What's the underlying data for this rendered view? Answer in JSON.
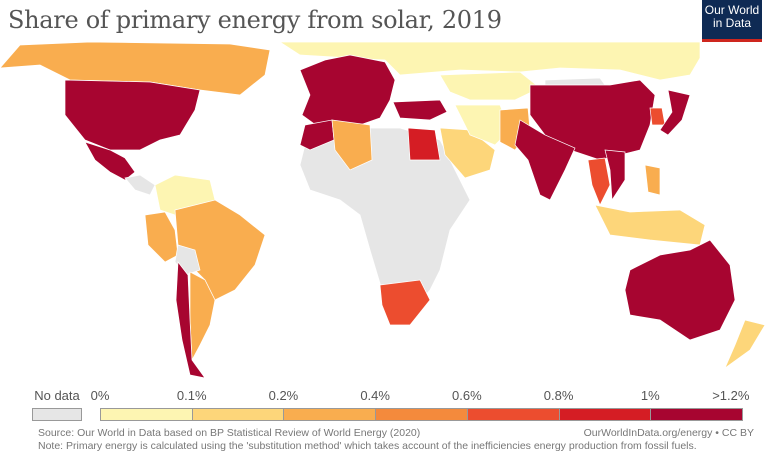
{
  "title": "Share of primary energy from solar, 2019",
  "logo": {
    "line1": "Our World",
    "line2": "in Data"
  },
  "chart_data": {
    "type": "choropleth",
    "title": "Share of primary energy from solar, 2019",
    "legend": {
      "no_data_label": "No data",
      "no_data_color": "#e6e6e6",
      "ticks": [
        "0%",
        "0.1%",
        "0.2%",
        "0.4%",
        "0.6%",
        "0.8%",
        "1%",
        ">1.2%"
      ],
      "bins": [
        {
          "range": "0-0.1%",
          "color": "#fdf5b2"
        },
        {
          "range": "0.1-0.2%",
          "color": "#fdd67a"
        },
        {
          "range": "0.2-0.4%",
          "color": "#f9ad4f"
        },
        {
          "range": "0.4-0.6%",
          "color": "#f48a3c"
        },
        {
          "range": "0.6-0.8%",
          "color": "#ec4d2f"
        },
        {
          "range": "0.8-1%",
          "color": "#d51d24"
        },
        {
          "range": ">1.2%",
          "color": "#a70530"
        }
      ]
    },
    "regions": {
      "canada": 2,
      "usa": 6,
      "mexico": 6,
      "central_america": -1,
      "colombia_venezuela": 0,
      "brazil": 2,
      "peru": 2,
      "bolivia": -1,
      "chile": 6,
      "argentina": 2,
      "europe": 6,
      "turkey": 6,
      "russia": 0,
      "kazakhstan": 0,
      "africa": -1,
      "morocco": 6,
      "algeria": 2,
      "egypt": 5,
      "south_africa": 4,
      "saudi_arabia": 1,
      "iran": 0,
      "pakistan": 2,
      "india": 6,
      "china": 6,
      "korea": 4,
      "japan": 6,
      "thailand": 4,
      "vietnam": 6,
      "philippines": 2,
      "indonesia": 1,
      "australia": 6,
      "new_zealand": 1,
      "mongolia": -1
    }
  },
  "footer": {
    "source": "Source: Our World in Data based on BP Statistical Review of World Energy (2020)",
    "link": "OurWorldInData.org/energy • CC BY",
    "note": "Note: Primary energy is calculated using the 'substitution method' which takes account of the inefficiencies energy production from fossil fuels."
  }
}
